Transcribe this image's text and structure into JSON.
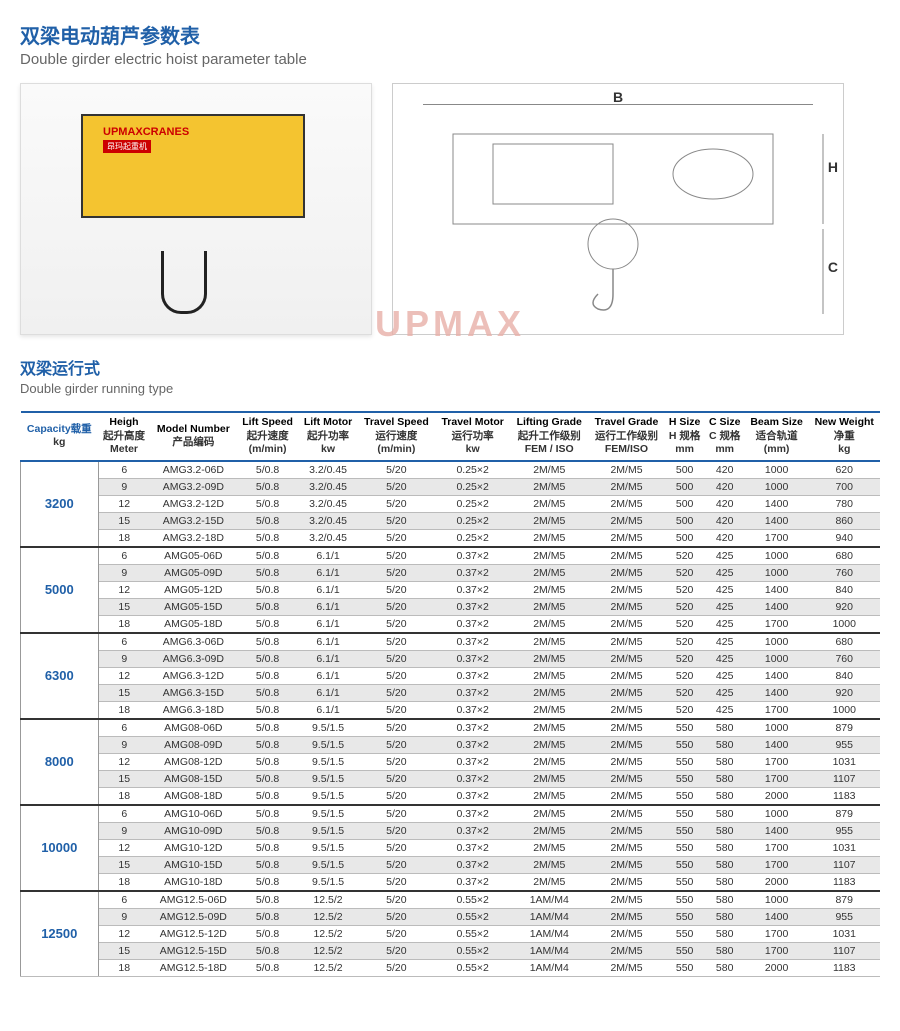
{
  "title_cn": "双梁电动葫芦参数表",
  "title_en": "Double girder electric hoist parameter table",
  "subtitle_cn": "双梁运行式",
  "subtitle_en": "Double girder running type",
  "watermark": "UPMAX",
  "hoist_brand": "UPMAXCRANES",
  "hoist_sub": "昂玛起重机",
  "dim_b": "B",
  "dim_h": "H",
  "dim_c": "C",
  "headers": [
    {
      "en": "Capacity",
      "cn": "载重",
      "unit": "kg",
      "cap": true
    },
    {
      "en": "Heigh",
      "cn": "起升高度",
      "unit": "Meter"
    },
    {
      "en": "Model Number",
      "cn": "产品编码",
      "unit": ""
    },
    {
      "en": "Lift Speed",
      "cn": "起升速度",
      "unit": "(m/min)"
    },
    {
      "en": "Lift Motor",
      "cn": "起升功率",
      "unit": "kw"
    },
    {
      "en": "Travel Speed",
      "cn": "运行速度",
      "unit": "(m/min)"
    },
    {
      "en": "Travel Motor",
      "cn": "运行功率",
      "unit": "kw"
    },
    {
      "en": "Lifting Grade",
      "cn": "起升工作级别",
      "unit": "FEM / ISO"
    },
    {
      "en": "Travel Grade",
      "cn": "运行工作级别",
      "unit": "FEM/ISO"
    },
    {
      "en": "H Size",
      "cn": "H 规格",
      "unit": "mm"
    },
    {
      "en": "C Size",
      "cn": "C 规格",
      "unit": "mm"
    },
    {
      "en": "Beam Size",
      "cn": "适合轨道",
      "unit": "(mm)"
    },
    {
      "en": "New Weight",
      "cn": "净重",
      "unit": "kg"
    }
  ],
  "groups": [
    {
      "cap": "3200",
      "rows": [
        [
          "6",
          "AMG3.2-06D",
          "5/0.8",
          "3.2/0.45",
          "5/20",
          "0.25×2",
          "2M/M5",
          "2M/M5",
          "500",
          "420",
          "1000",
          "620"
        ],
        [
          "9",
          "AMG3.2-09D",
          "5/0.8",
          "3.2/0.45",
          "5/20",
          "0.25×2",
          "2M/M5",
          "2M/M5",
          "500",
          "420",
          "1000",
          "700"
        ],
        [
          "12",
          "AMG3.2-12D",
          "5/0.8",
          "3.2/0.45",
          "5/20",
          "0.25×2",
          "2M/M5",
          "2M/M5",
          "500",
          "420",
          "1400",
          "780"
        ],
        [
          "15",
          "AMG3.2-15D",
          "5/0.8",
          "3.2/0.45",
          "5/20",
          "0.25×2",
          "2M/M5",
          "2M/M5",
          "500",
          "420",
          "1400",
          "860"
        ],
        [
          "18",
          "AMG3.2-18D",
          "5/0.8",
          "3.2/0.45",
          "5/20",
          "0.25×2",
          "2M/M5",
          "2M/M5",
          "500",
          "420",
          "1700",
          "940"
        ]
      ]
    },
    {
      "cap": "5000",
      "rows": [
        [
          "6",
          "AMG05-06D",
          "5/0.8",
          "6.1/1",
          "5/20",
          "0.37×2",
          "2M/M5",
          "2M/M5",
          "520",
          "425",
          "1000",
          "680"
        ],
        [
          "9",
          "AMG05-09D",
          "5/0.8",
          "6.1/1",
          "5/20",
          "0.37×2",
          "2M/M5",
          "2M/M5",
          "520",
          "425",
          "1000",
          "760"
        ],
        [
          "12",
          "AMG05-12D",
          "5/0.8",
          "6.1/1",
          "5/20",
          "0.37×2",
          "2M/M5",
          "2M/M5",
          "520",
          "425",
          "1400",
          "840"
        ],
        [
          "15",
          "AMG05-15D",
          "5/0.8",
          "6.1/1",
          "5/20",
          "0.37×2",
          "2M/M5",
          "2M/M5",
          "520",
          "425",
          "1400",
          "920"
        ],
        [
          "18",
          "AMG05-18D",
          "5/0.8",
          "6.1/1",
          "5/20",
          "0.37×2",
          "2M/M5",
          "2M/M5",
          "520",
          "425",
          "1700",
          "1000"
        ]
      ]
    },
    {
      "cap": "6300",
      "rows": [
        [
          "6",
          "AMG6.3-06D",
          "5/0.8",
          "6.1/1",
          "5/20",
          "0.37×2",
          "2M/M5",
          "2M/M5",
          "520",
          "425",
          "1000",
          "680"
        ],
        [
          "9",
          "AMG6.3-09D",
          "5/0.8",
          "6.1/1",
          "5/20",
          "0.37×2",
          "2M/M5",
          "2M/M5",
          "520",
          "425",
          "1000",
          "760"
        ],
        [
          "12",
          "AMG6.3-12D",
          "5/0.8",
          "6.1/1",
          "5/20",
          "0.37×2",
          "2M/M5",
          "2M/M5",
          "520",
          "425",
          "1400",
          "840"
        ],
        [
          "15",
          "AMG6.3-15D",
          "5/0.8",
          "6.1/1",
          "5/20",
          "0.37×2",
          "2M/M5",
          "2M/M5",
          "520",
          "425",
          "1400",
          "920"
        ],
        [
          "18",
          "AMG6.3-18D",
          "5/0.8",
          "6.1/1",
          "5/20",
          "0.37×2",
          "2M/M5",
          "2M/M5",
          "520",
          "425",
          "1700",
          "1000"
        ]
      ]
    },
    {
      "cap": "8000",
      "rows": [
        [
          "6",
          "AMG08-06D",
          "5/0.8",
          "9.5/1.5",
          "5/20",
          "0.37×2",
          "2M/M5",
          "2M/M5",
          "550",
          "580",
          "1000",
          "879"
        ],
        [
          "9",
          "AMG08-09D",
          "5/0.8",
          "9.5/1.5",
          "5/20",
          "0.37×2",
          "2M/M5",
          "2M/M5",
          "550",
          "580",
          "1400",
          "955"
        ],
        [
          "12",
          "AMG08-12D",
          "5/0.8",
          "9.5/1.5",
          "5/20",
          "0.37×2",
          "2M/M5",
          "2M/M5",
          "550",
          "580",
          "1700",
          "1031"
        ],
        [
          "15",
          "AMG08-15D",
          "5/0.8",
          "9.5/1.5",
          "5/20",
          "0.37×2",
          "2M/M5",
          "2M/M5",
          "550",
          "580",
          "1700",
          "1107"
        ],
        [
          "18",
          "AMG08-18D",
          "5/0.8",
          "9.5/1.5",
          "5/20",
          "0.37×2",
          "2M/M5",
          "2M/M5",
          "550",
          "580",
          "2000",
          "1183"
        ]
      ]
    },
    {
      "cap": "10000",
      "rows": [
        [
          "6",
          "AMG10-06D",
          "5/0.8",
          "9.5/1.5",
          "5/20",
          "0.37×2",
          "2M/M5",
          "2M/M5",
          "550",
          "580",
          "1000",
          "879"
        ],
        [
          "9",
          "AMG10-09D",
          "5/0.8",
          "9.5/1.5",
          "5/20",
          "0.37×2",
          "2M/M5",
          "2M/M5",
          "550",
          "580",
          "1400",
          "955"
        ],
        [
          "12",
          "AMG10-12D",
          "5/0.8",
          "9.5/1.5",
          "5/20",
          "0.37×2",
          "2M/M5",
          "2M/M5",
          "550",
          "580",
          "1700",
          "1031"
        ],
        [
          "15",
          "AMG10-15D",
          "5/0.8",
          "9.5/1.5",
          "5/20",
          "0.37×2",
          "2M/M5",
          "2M/M5",
          "550",
          "580",
          "1700",
          "1107"
        ],
        [
          "18",
          "AMG10-18D",
          "5/0.8",
          "9.5/1.5",
          "5/20",
          "0.37×2",
          "2M/M5",
          "2M/M5",
          "550",
          "580",
          "2000",
          "1183"
        ]
      ]
    },
    {
      "cap": "12500",
      "rows": [
        [
          "6",
          "AMG12.5-06D",
          "5/0.8",
          "12.5/2",
          "5/20",
          "0.55×2",
          "1AM/M4",
          "2M/M5",
          "550",
          "580",
          "1000",
          "879"
        ],
        [
          "9",
          "AMG12.5-09D",
          "5/0.8",
          "12.5/2",
          "5/20",
          "0.55×2",
          "1AM/M4",
          "2M/M5",
          "550",
          "580",
          "1400",
          "955"
        ],
        [
          "12",
          "AMG12.5-12D",
          "5/0.8",
          "12.5/2",
          "5/20",
          "0.55×2",
          "1AM/M4",
          "2M/M5",
          "550",
          "580",
          "1700",
          "1031"
        ],
        [
          "15",
          "AMG12.5-15D",
          "5/0.8",
          "12.5/2",
          "5/20",
          "0.55×2",
          "1AM/M4",
          "2M/M5",
          "550",
          "580",
          "1700",
          "1107"
        ],
        [
          "18",
          "AMG12.5-18D",
          "5/0.8",
          "12.5/2",
          "5/20",
          "0.55×2",
          "1AM/M4",
          "2M/M5",
          "550",
          "580",
          "2000",
          "1183"
        ]
      ]
    }
  ]
}
